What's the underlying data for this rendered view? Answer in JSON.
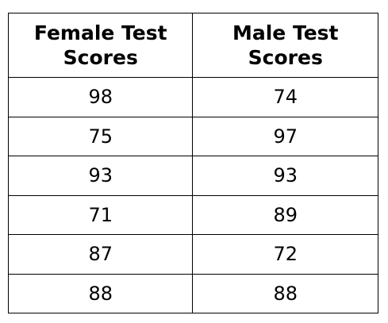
{
  "table": {
    "headers": [
      {
        "line1": "Female Test",
        "line2": "Scores"
      },
      {
        "line1": "Male Test",
        "line2": "Scores"
      }
    ],
    "rows": [
      [
        "98",
        "74"
      ],
      [
        "75",
        "97"
      ],
      [
        "93",
        "93"
      ],
      [
        "71",
        "89"
      ],
      [
        "87",
        "72"
      ],
      [
        "88",
        "88"
      ]
    ]
  }
}
